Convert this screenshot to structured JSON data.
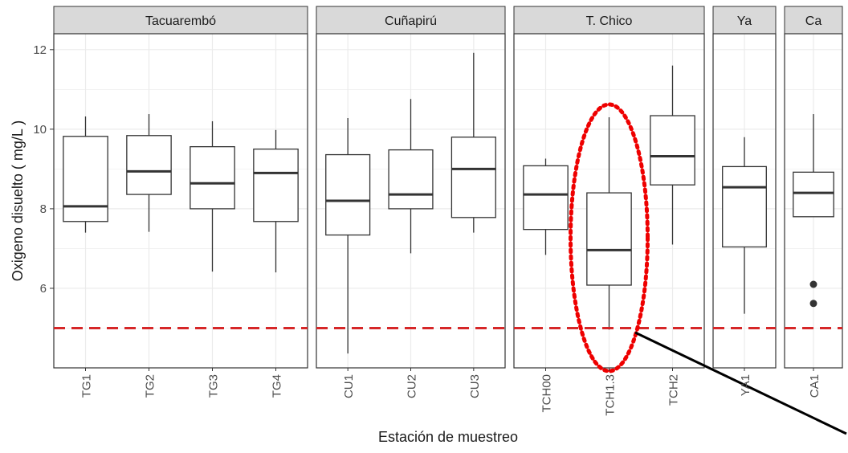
{
  "chart_data": {
    "type": "boxplot",
    "xlabel": "Estación de muestreo",
    "ylabel": "Oxigeno disuelto  ( mg/L )",
    "ylim": [
      4.0,
      12.4
    ],
    "yticks": [
      6,
      8,
      10,
      12
    ],
    "reference_line": {
      "y": 5,
      "style": "dashed",
      "color": "#d62728"
    },
    "grid": true,
    "colors": {
      "panel_strip": "#d9d9d9",
      "box_stroke": "#333333",
      "median": "#333333",
      "highlight": "#ee0000"
    },
    "facets": [
      {
        "strip": "Tacuarembó",
        "stations": [
          {
            "label": "TG1",
            "min": 7.4,
            "q1": 7.68,
            "median": 8.06,
            "q3": 9.82,
            "max": 10.32,
            "outliers": []
          },
          {
            "label": "TG2",
            "min": 7.42,
            "q1": 8.36,
            "median": 8.94,
            "q3": 9.84,
            "max": 10.38,
            "outliers": []
          },
          {
            "label": "TG3",
            "min": 6.42,
            "q1": 8.0,
            "median": 8.64,
            "q3": 9.56,
            "max": 10.2,
            "outliers": []
          },
          {
            "label": "TG4",
            "min": 6.4,
            "q1": 7.68,
            "median": 8.9,
            "q3": 9.5,
            "max": 9.98,
            "outliers": []
          }
        ]
      },
      {
        "strip": "Cuñapirú",
        "stations": [
          {
            "label": "CU1",
            "min": 4.36,
            "q1": 7.34,
            "median": 8.2,
            "q3": 9.36,
            "max": 10.28,
            "outliers": []
          },
          {
            "label": "CU2",
            "min": 6.88,
            "q1": 8.0,
            "median": 8.36,
            "q3": 9.48,
            "max": 10.76,
            "outliers": []
          },
          {
            "label": "CU3",
            "min": 7.4,
            "q1": 7.78,
            "median": 9.0,
            "q3": 9.8,
            "max": 11.92,
            "outliers": []
          }
        ]
      },
      {
        "strip": "T. Chico",
        "stations": [
          {
            "label": "TCH00",
            "min": 6.84,
            "q1": 7.48,
            "median": 8.36,
            "q3": 9.08,
            "max": 9.26,
            "outliers": []
          },
          {
            "label": "TCH1.3",
            "min": 4.96,
            "q1": 6.08,
            "median": 6.96,
            "q3": 8.4,
            "max": 10.3,
            "outliers": []
          },
          {
            "label": "TCH2",
            "min": 7.1,
            "q1": 8.6,
            "median": 9.32,
            "q3": 10.34,
            "max": 11.6,
            "outliers": []
          }
        ]
      },
      {
        "strip": "Ya",
        "stations": [
          {
            "label": "YA1",
            "min": 5.36,
            "q1": 7.04,
            "median": 8.54,
            "q3": 9.06,
            "max": 9.8,
            "outliers": []
          }
        ]
      },
      {
        "strip": "Ca",
        "stations": [
          {
            "label": "CA1",
            "min": 7.8,
            "q1": 7.8,
            "median": 8.4,
            "q3": 8.92,
            "max": 10.38,
            "outliers": [
              6.1,
              5.62
            ]
          }
        ]
      }
    ],
    "annotation": {
      "type": "dotted-ellipse",
      "target": "TCH1.3",
      "color": "#ee0000"
    }
  }
}
